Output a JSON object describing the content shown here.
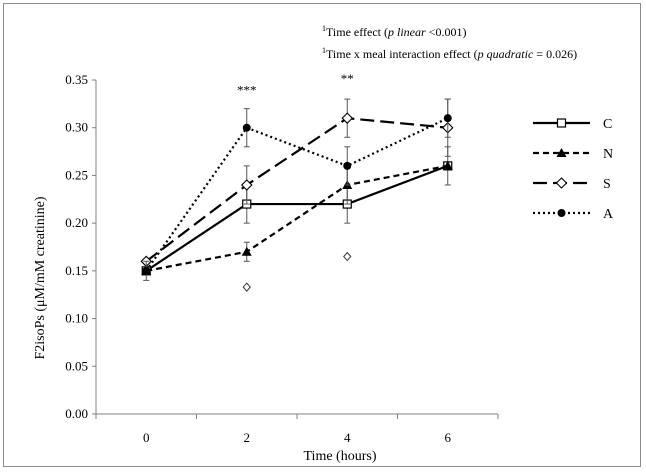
{
  "chart_data": {
    "type": "line",
    "x": [
      0,
      2,
      4,
      6
    ],
    "xticks": [
      "0",
      "2",
      "4",
      "6"
    ],
    "xlabel": "Time (hours)",
    "ylabel": "F2isoPs (μM/mM creatinine)",
    "ylim": [
      0.0,
      0.35
    ],
    "yticks": [
      "0.00",
      "0.05",
      "0.10",
      "0.15",
      "0.20",
      "0.25",
      "0.30",
      "0.35"
    ],
    "grid": false,
    "legend": "right",
    "series": [
      {
        "name": "C",
        "marker": "open-square",
        "dash": "solid",
        "values": [
          0.15,
          0.22,
          0.22,
          0.26
        ],
        "err": [
          0.0,
          0.02,
          0.02,
          0.02
        ]
      },
      {
        "name": "N",
        "marker": "filled-triangle",
        "dash": "dashed",
        "values": [
          0.15,
          0.17,
          0.24,
          0.26
        ],
        "err": [
          0.0,
          0.01,
          0.02,
          0.0
        ]
      },
      {
        "name": "S",
        "marker": "open-diamond",
        "dash": "long-dash",
        "values": [
          0.16,
          0.24,
          0.31,
          0.3
        ],
        "err": [
          0.0,
          0.02,
          0.02,
          0.03
        ]
      },
      {
        "name": "A",
        "marker": "filled-circle",
        "dash": "dotted",
        "values": [
          0.15,
          0.3,
          0.26,
          0.31
        ],
        "err": [
          0.01,
          0.02,
          0.02,
          0.02
        ]
      }
    ],
    "significance": [
      {
        "x": 2,
        "y": 0.335,
        "label": "***"
      },
      {
        "x": 4,
        "y": 0.347,
        "label": "**"
      }
    ],
    "outlier_markers": [
      {
        "x": 2,
        "y": 0.133
      },
      {
        "x": 4,
        "y": 0.165
      }
    ],
    "footnotes": [
      {
        "sup": "1",
        "parts": [
          {
            "text": "Time effect (",
            "italic": false
          },
          {
            "text": "p linear",
            "italic": true
          },
          {
            "text": " <0.001)",
            "italic": false
          }
        ]
      },
      {
        "sup": "1",
        "parts": [
          {
            "text": "Time x meal interaction effect (",
            "italic": false
          },
          {
            "text": "p quadratic",
            "italic": true
          },
          {
            "text": " = 0.026)",
            "italic": false
          }
        ]
      }
    ]
  }
}
